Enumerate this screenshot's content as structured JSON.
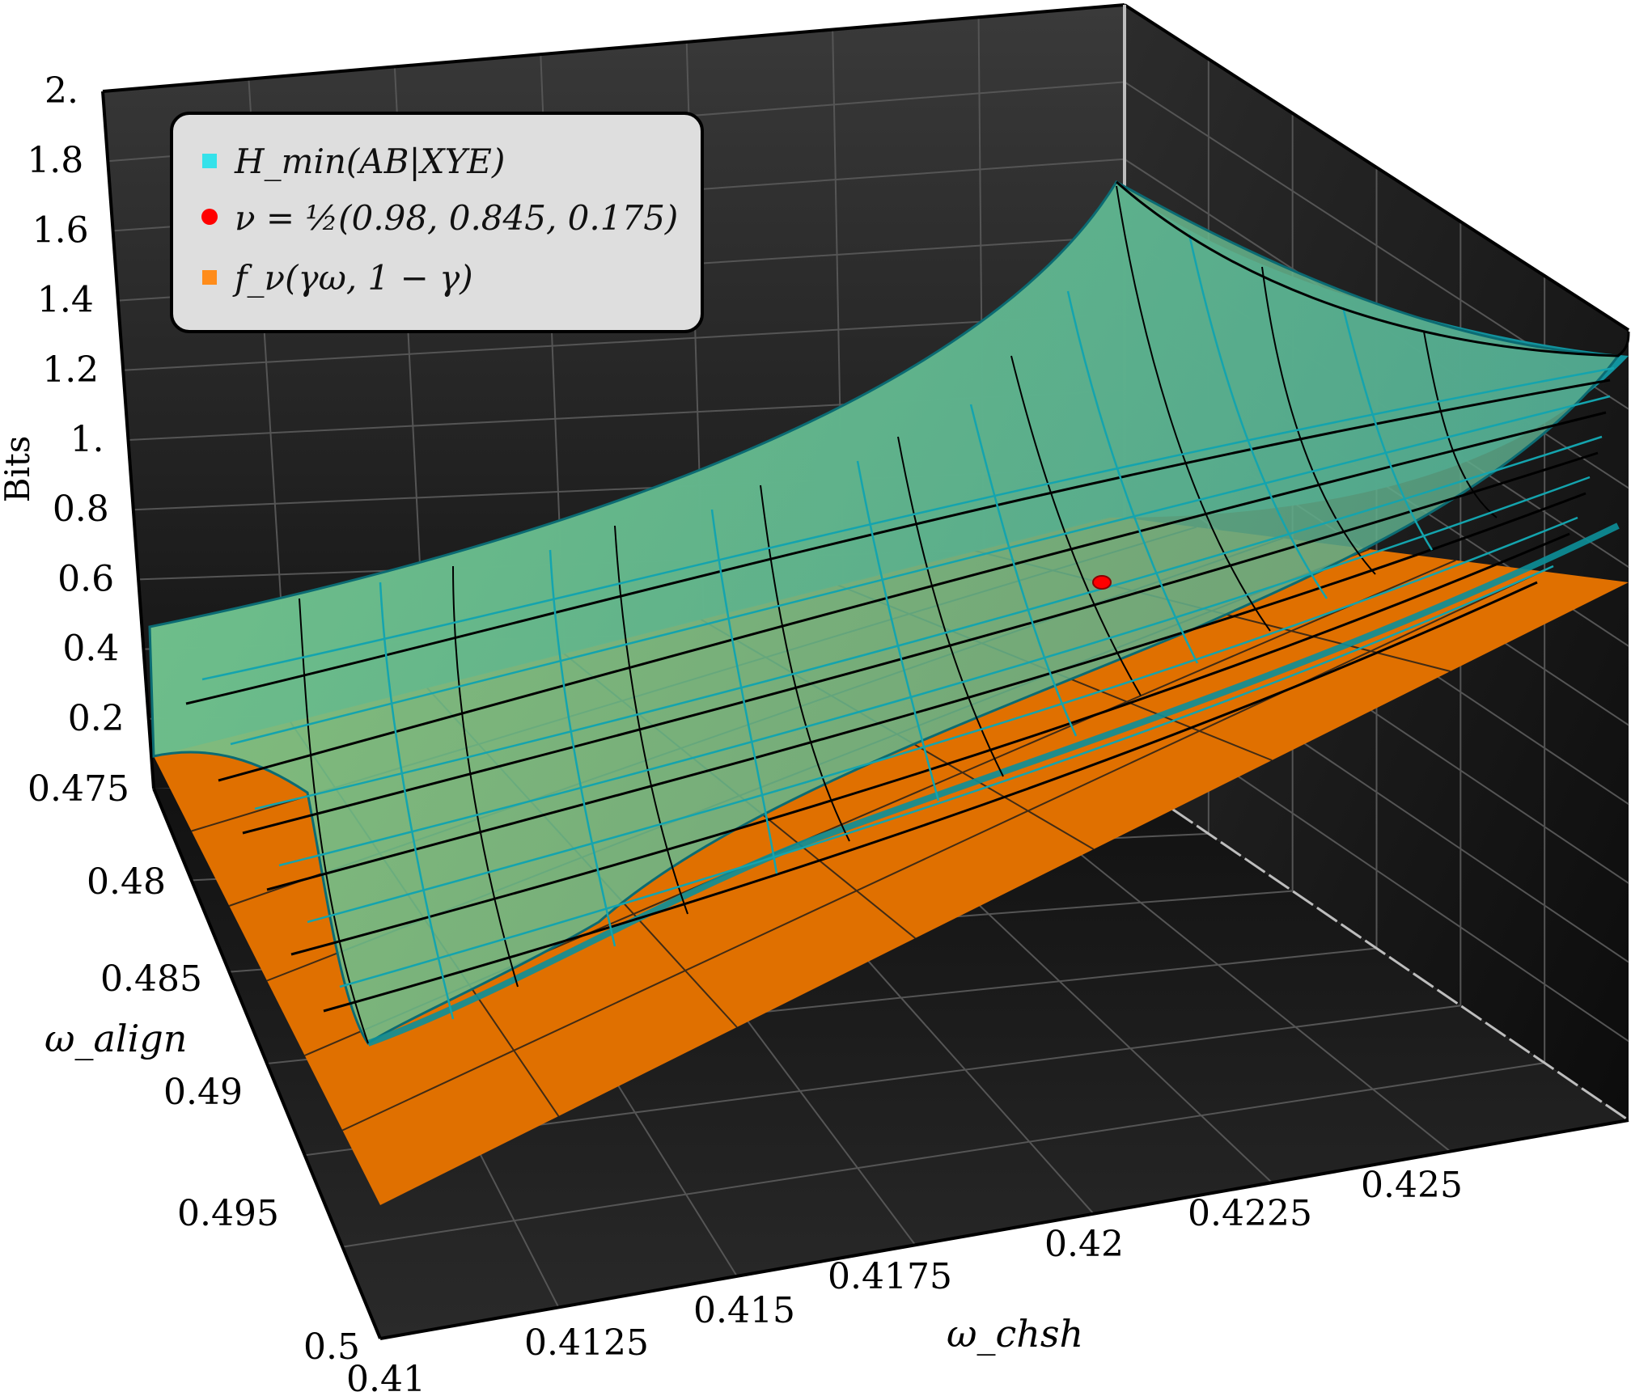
{
  "chart_data": {
    "type": "surface3d",
    "title": "",
    "xlabel": "ω_chsh",
    "ylabel": "ω_align",
    "zlabel": "Bits",
    "xlim": [
      0.41,
      0.4275
    ],
    "ylim": [
      0.475,
      0.5
    ],
    "zlim": [
      0,
      2
    ],
    "x_ticks": [
      "0.41",
      "0.4125",
      "0.415",
      "0.4175",
      "0.42",
      "0.4225",
      "0.425"
    ],
    "y_ticks": [
      "0.475",
      "0.48",
      "0.485",
      "0.49",
      "0.495",
      "0.5"
    ],
    "z_ticks": [
      "0.2",
      "0.4",
      "0.6",
      "0.8",
      "1.",
      "1.2",
      "1.4",
      "1.6",
      "1.8",
      "2."
    ],
    "legend_position": "top-left",
    "series": [
      {
        "name": "H_min(AB|XYE)",
        "kind": "surface",
        "color": "#12a8b4",
        "corner_values": [
          {
            "x": 0.41,
            "y": 0.475,
            "z": 0.56
          },
          {
            "x": 0.4275,
            "y": 0.475,
            "z": 1.7
          },
          {
            "x": 0.4275,
            "y": 0.5,
            "z": 1.3
          },
          {
            "x": 0.41,
            "y": 0.5,
            "z": 0.22
          }
        ]
      },
      {
        "name": "ν = ½(0.98, 0.845, 0.175)",
        "kind": "point",
        "color": "#ff0000",
        "x": 0.4213,
        "y": 0.4855,
        "z": 0.62
      },
      {
        "name": "f_ν(γω, 1 − γ)",
        "kind": "plane",
        "color": "#e67300",
        "corner_values": [
          {
            "x": 0.41,
            "y": 0.475,
            "z": 0.2
          },
          {
            "x": 0.4275,
            "y": 0.475,
            "z": 1.3
          },
          {
            "x": 0.4275,
            "y": 0.5,
            "z": 0.78
          },
          {
            "x": 0.41,
            "y": 0.5,
            "z": 0.0
          }
        ]
      }
    ]
  },
  "legend": {
    "items": [
      {
        "label": "H_min(AB|XYE)",
        "color": "#35e2ea"
      },
      {
        "label": "ν = ½(0.98, 0.845, 0.175)",
        "color": "#ff0000"
      },
      {
        "label": "f_ν(γω, 1 − γ)",
        "color": "#ff8c1a"
      }
    ]
  },
  "colors": {
    "pane_dark": "#1a1a1a",
    "surface_teal": "#0f8f9a",
    "surface_green": "#7cc98a",
    "plane_orange": "#e07000",
    "legend_bg": "#dedede"
  }
}
